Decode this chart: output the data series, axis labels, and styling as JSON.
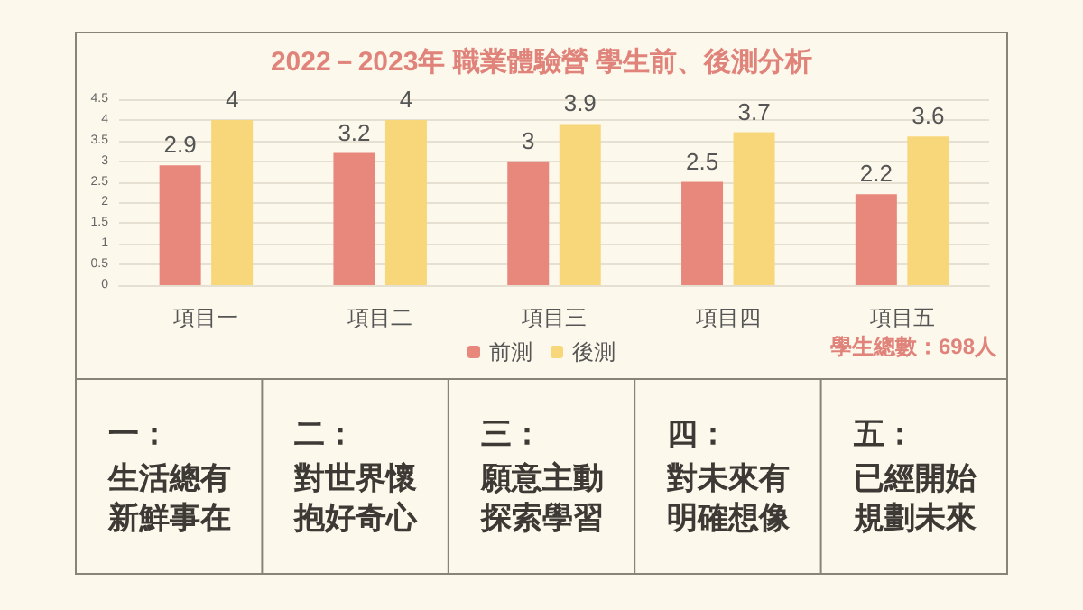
{
  "chart_data": {
    "type": "bar",
    "title": "2022－2023年 職業體驗營 學生前、後測分析",
    "categories": [
      "項目一",
      "項目二",
      "項目三",
      "項目四",
      "項目五"
    ],
    "series": [
      {
        "name": "前測",
        "color": "#e8877c",
        "values": [
          2.9,
          3.2,
          3,
          2.5,
          2.2
        ]
      },
      {
        "name": "後測",
        "color": "#f8d77a",
        "values": [
          4,
          4,
          3.9,
          3.7,
          3.6
        ]
      }
    ],
    "ylim": [
      0,
      4.5
    ],
    "yticks": [
      0,
      0.5,
      1,
      1.5,
      2,
      2.5,
      3,
      3.5,
      4,
      4.5
    ],
    "grid": "y",
    "legend": "bottom",
    "data_labels": true,
    "annotations": [
      "學生總數：698人",
      "一：",
      "生活總有新鮮事在",
      "二：",
      "對世界懷抱好奇心",
      "三：",
      "願意主動探索學習",
      "四：",
      "對未來有明確想像",
      "五：",
      "已經開始規劃未來"
    ]
  }
}
